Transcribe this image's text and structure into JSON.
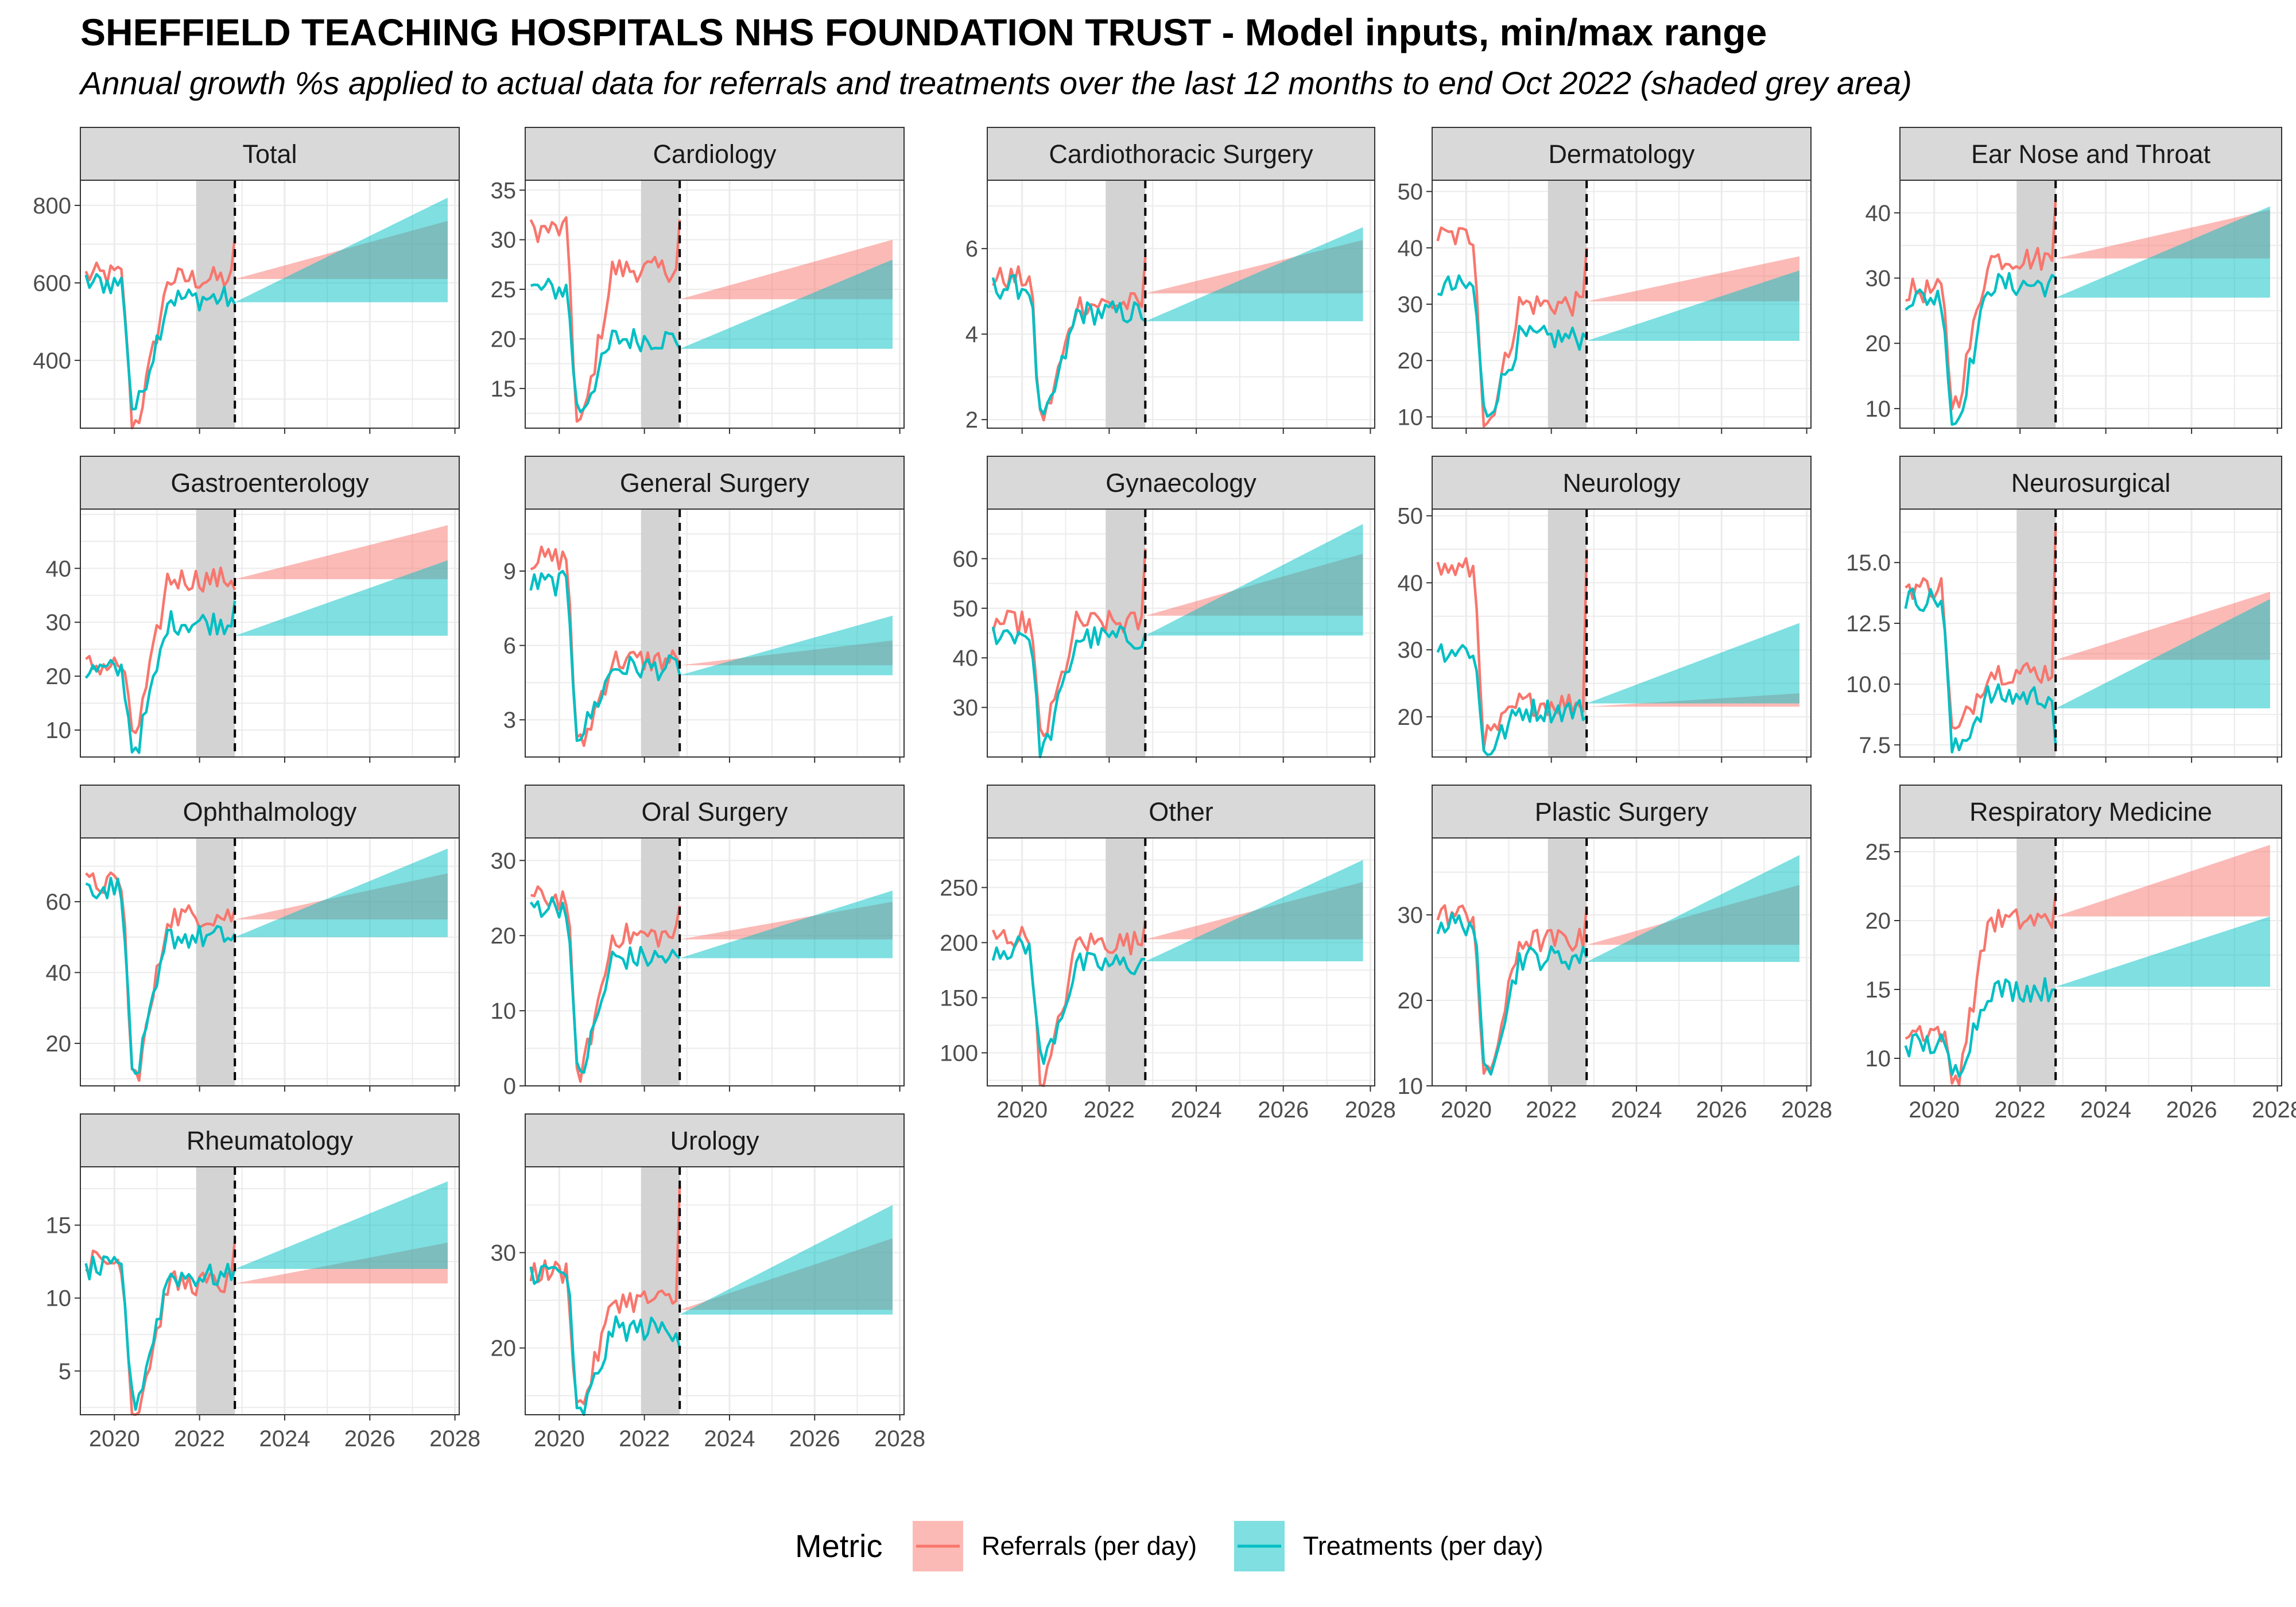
{
  "title": "SHEFFIELD TEACHING HOSPITALS NHS FOUNDATION TRUST - Model inputs, min/max range",
  "subtitle": "Annual growth %s applied to actual data for referrals and treatments over the last 12 months to end Oct 2022 (shaded grey area)",
  "colors": {
    "referrals": "#F8766D",
    "treatments": "#00BFC4",
    "referrals_fill": "#F8766D",
    "treatments_fill": "#00BFC4",
    "strip_bg": "#D9D9D9",
    "shade": "#D3D3D3",
    "grid": "#EBEBEB"
  },
  "chart_data": {
    "type": "line",
    "x_unit": "year",
    "xlim": [
      2019.2,
      2028.1
    ],
    "x_ticks": [
      2020,
      2022,
      2024,
      2026,
      2028
    ],
    "shaded_period": [
      2021.92,
      2022.83
    ],
    "forecast_start": 2022.83,
    "forecast_end": 2027.83,
    "legend": {
      "title": "Metric",
      "position": "bottom",
      "entries": [
        "Referrals (per day)",
        "Treatments (per day)"
      ]
    },
    "facets": [
      {
        "name": "Total",
        "ylim": [
          225,
          865
        ],
        "yticks": [
          400,
          600,
          800
        ],
        "ref": {
          "base": 620,
          "pre": 610,
          "fmin": 610,
          "fmax": 760,
          "dip": 240,
          "last": 720
        },
        "trt": {
          "base": 600,
          "pre": 560,
          "fmin": 550,
          "fmax": 820,
          "dip": 280,
          "last": 545
        }
      },
      {
        "name": "Cardiology",
        "ylim": [
          11,
          36
        ],
        "yticks": [
          15,
          20,
          25,
          30,
          35
        ],
        "ref": {
          "base": 31,
          "pre": 27,
          "fmin": 24,
          "fmax": 30,
          "dip": 11.5,
          "last": 32
        },
        "trt": {
          "base": 25,
          "pre": 20,
          "fmin": 19,
          "fmax": 28,
          "dip": 13,
          "last": 19
        }
      },
      {
        "name": "Cardiothoracic Surgery",
        "ylim": [
          1.8,
          7.6
        ],
        "yticks": [
          2,
          4,
          6
        ],
        "ref": {
          "base": 5.3,
          "pre": 4.7,
          "fmin": 4.95,
          "fmax": 6.2,
          "dip": 2.1,
          "last": 5.8
        },
        "trt": {
          "base": 5.1,
          "pre": 4.5,
          "fmin": 4.3,
          "fmax": 6.5,
          "dip": 2.0,
          "last": 4.3
        }
      },
      {
        "name": "Dermatology",
        "ylim": [
          8,
          52
        ],
        "yticks": [
          10,
          20,
          30,
          40,
          50
        ],
        "ref": {
          "base": 42,
          "pre": 30,
          "fmin": 30.5,
          "fmax": 38.5,
          "dip": 9,
          "last": 40
        },
        "trt": {
          "base": 33,
          "pre": 24,
          "fmin": 23.5,
          "fmax": 36,
          "dip": 11,
          "last": 24
        }
      },
      {
        "name": "Ear Nose and Throat",
        "ylim": [
          7,
          45
        ],
        "yticks": [
          10,
          20,
          30,
          40
        ],
        "ref": {
          "base": 28,
          "pre": 33,
          "fmin": 33,
          "fmax": 40.5,
          "dip": 11,
          "last": 42
        },
        "trt": {
          "base": 27,
          "pre": 29,
          "fmin": 27,
          "fmax": 41,
          "dip": 8,
          "last": 30
        }
      },
      {
        "name": "Gastroenterology",
        "ylim": [
          5,
          51
        ],
        "yticks": [
          10,
          20,
          30,
          40
        ],
        "ref": {
          "base": 22,
          "pre": 38,
          "fmin": 38,
          "fmax": 48,
          "dip": 10,
          "last": 36
        },
        "trt": {
          "base": 21,
          "pre": 30,
          "fmin": 27.5,
          "fmax": 41.5,
          "dip": 7,
          "last": 34
        }
      },
      {
        "name": "General Surgery",
        "ylim": [
          1.5,
          11.5
        ],
        "yticks": [
          3,
          6,
          9
        ],
        "ref": {
          "base": 9.5,
          "pre": 5.4,
          "fmin": 5.2,
          "fmax": 6.2,
          "dip": 2,
          "last": 5.3
        },
        "trt": {
          "base": 8.5,
          "pre": 5.1,
          "fmin": 4.8,
          "fmax": 7.2,
          "dip": 2.5,
          "last": 4.8
        }
      },
      {
        "name": "Gynaecology",
        "ylim": [
          20,
          70
        ],
        "yticks": [
          30,
          40,
          50,
          60
        ],
        "ref": {
          "base": 47,
          "pre": 47,
          "fmin": 48.5,
          "fmax": 61,
          "dip": 25,
          "last": 62
        },
        "trt": {
          "base": 45,
          "pre": 44,
          "fmin": 44.5,
          "fmax": 67,
          "dip": 22,
          "last": 45
        }
      },
      {
        "name": "Neurology",
        "ylim": [
          14,
          51
        ],
        "yticks": [
          20,
          30,
          40,
          50
        ],
        "ref": {
          "base": 42,
          "pre": 22,
          "fmin": 21.5,
          "fmax": 23.5,
          "dip": 17,
          "last": 45
        },
        "trt": {
          "base": 30,
          "pre": 21,
          "fmin": 22,
          "fmax": 34,
          "dip": 15,
          "last": 20
        }
      },
      {
        "name": "Neurosurgical",
        "ylim": [
          7,
          17.2
        ],
        "yticks": [
          7.5,
          10.0,
          12.5,
          15.0
        ],
        "ref": {
          "base": 14,
          "pre": 10.5,
          "fmin": 11,
          "fmax": 13.8,
          "dip": 8,
          "last": 16.5
        },
        "trt": {
          "base": 13.5,
          "pre": 9.5,
          "fmin": 9,
          "fmax": 13.5,
          "dip": 7.3,
          "last": 7.5
        }
      },
      {
        "name": "Ophthalmology",
        "ylim": [
          8,
          78
        ],
        "yticks": [
          20,
          40,
          60
        ],
        "ref": {
          "base": 65,
          "pre": 56,
          "fmin": 55,
          "fmax": 68,
          "dip": 11,
          "last": 58
        },
        "trt": {
          "base": 64,
          "pre": 50,
          "fmin": 50,
          "fmax": 75,
          "dip": 12,
          "last": 51
        }
      },
      {
        "name": "Oral Surgery",
        "ylim": [
          0,
          33
        ],
        "yticks": [
          0,
          10,
          20,
          30
        ],
        "ref": {
          "base": 25,
          "pre": 20,
          "fmin": 19.5,
          "fmax": 24.5,
          "dip": 2,
          "last": 24
        },
        "trt": {
          "base": 24,
          "pre": 17,
          "fmin": 17,
          "fmax": 26,
          "dip": 2,
          "last": 17
        }
      },
      {
        "name": "Other",
        "ylim": [
          70,
          295
        ],
        "yticks": [
          100,
          150,
          200,
          250
        ],
        "ref": {
          "base": 205,
          "pre": 200,
          "fmin": 203,
          "fmax": 255,
          "dip": 75,
          "last": 220
        },
        "trt": {
          "base": 195,
          "pre": 180,
          "fmin": 183,
          "fmax": 275,
          "dip": 95,
          "last": 185
        }
      },
      {
        "name": "Plastic Surgery",
        "ylim": [
          10,
          39
        ],
        "yticks": [
          10,
          20,
          30
        ],
        "ref": {
          "base": 30,
          "pre": 27,
          "fmin": 26.5,
          "fmax": 33.5,
          "dip": 11,
          "last": 31
        },
        "trt": {
          "base": 29,
          "pre": 25,
          "fmin": 24.5,
          "fmax": 37,
          "dip": 12,
          "last": 25
        }
      },
      {
        "name": "Respiratory Medicine",
        "ylim": [
          8,
          26
        ],
        "yticks": [
          10,
          15,
          20,
          25
        ],
        "ref": {
          "base": 12,
          "pre": 20,
          "fmin": 20.3,
          "fmax": 25.5,
          "dip": 8.5,
          "last": 22
        },
        "trt": {
          "base": 11,
          "pre": 15,
          "fmin": 15.2,
          "fmax": 20.3,
          "dip": 9,
          "last": 15
        }
      },
      {
        "name": "Rheumatology",
        "ylim": [
          2,
          19
        ],
        "yticks": [
          5,
          10,
          15
        ],
        "ref": {
          "base": 12.5,
          "pre": 11,
          "fmin": 11,
          "fmax": 13.8,
          "dip": 2.3,
          "last": 14
        },
        "trt": {
          "base": 12,
          "pre": 11.5,
          "fmin": 12,
          "fmax": 18,
          "dip": 3,
          "last": 12
        }
      },
      {
        "name": "Urology",
        "ylim": [
          13,
          39
        ],
        "yticks": [
          20,
          30
        ],
        "ref": {
          "base": 28,
          "pre": 25,
          "fmin": 24,
          "fmax": 31.5,
          "dip": 14,
          "last": 37
        },
        "trt": {
          "base": 28,
          "pre": 22,
          "fmin": 23.5,
          "fmax": 35,
          "dip": 13,
          "last": 20
        }
      }
    ]
  }
}
